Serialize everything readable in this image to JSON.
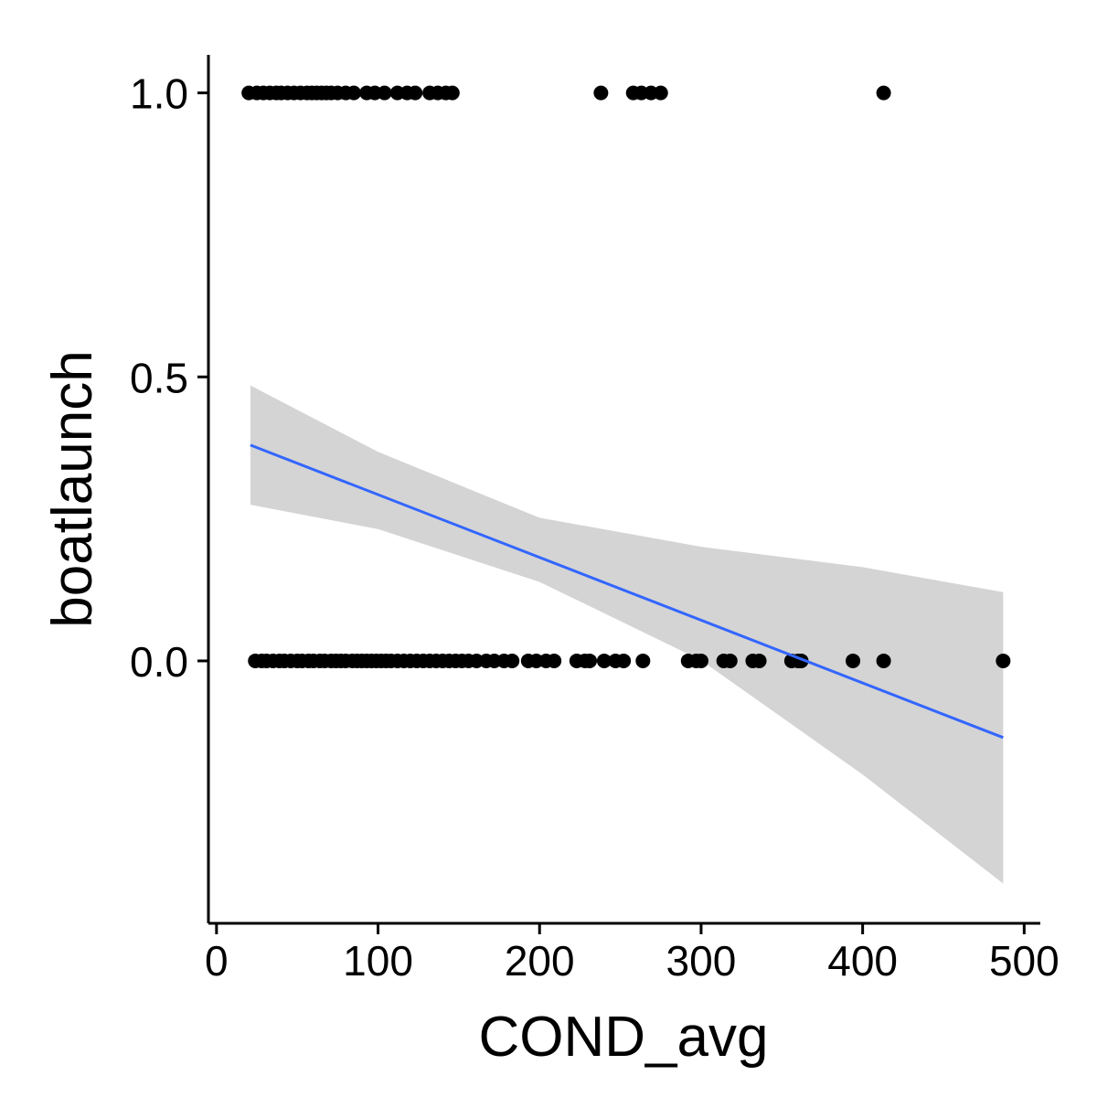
{
  "chart_data": {
    "type": "scatter",
    "xlabel": "COND_avg",
    "ylabel": "boatlaunch",
    "xlim": [
      -5,
      510
    ],
    "ylim": [
      -0.462,
      1.067
    ],
    "x_ticks": [
      {
        "value": 0,
        "label": "0"
      },
      {
        "value": 100,
        "label": "100"
      },
      {
        "value": 200,
        "label": "200"
      },
      {
        "value": 300,
        "label": "300"
      },
      {
        "value": 400,
        "label": "400"
      },
      {
        "value": 500,
        "label": "500"
      }
    ],
    "y_ticks": [
      {
        "value": 0.0,
        "label": "0.0"
      },
      {
        "value": 0.5,
        "label": "0.5"
      },
      {
        "value": 1.0,
        "label": "1.0"
      }
    ],
    "grid": false,
    "legend": "none",
    "points_y1": [
      20,
      25,
      29,
      33,
      37,
      40,
      44,
      48,
      52,
      56,
      59,
      62,
      65,
      68,
      71,
      75,
      80,
      85,
      93,
      98,
      104,
      112,
      118,
      123,
      132,
      137,
      142,
      146,
      238,
      258,
      263,
      269,
      275,
      413
    ],
    "points_y0": [
      24,
      28,
      31,
      35,
      39,
      42,
      46,
      50,
      53,
      57,
      60,
      64,
      67,
      71,
      74,
      77,
      80,
      84,
      87,
      90,
      93,
      96,
      99,
      102,
      105,
      108,
      112,
      116,
      120,
      124,
      128,
      132,
      136,
      140,
      144,
      148,
      152,
      156,
      161,
      167,
      172,
      178,
      183,
      193,
      198,
      204,
      209,
      223,
      228,
      231,
      240,
      247,
      252,
      264,
      292,
      297,
      300,
      314,
      318,
      332,
      336,
      356,
      360,
      362,
      394,
      413,
      487
    ],
    "fit_line": {
      "x": [
        21,
        487
      ],
      "y": [
        0.38,
        -0.135
      ],
      "color": "#3366FF"
    },
    "confidence_band": {
      "x": [
        21,
        100,
        200,
        300,
        400,
        487
      ],
      "lower": [
        0.275,
        0.232,
        0.139,
        0.001,
        -0.2,
        -0.392
      ],
      "upper": [
        0.485,
        0.368,
        0.252,
        0.201,
        0.165,
        0.121
      ],
      "color": "#D4D4D4"
    },
    "point_color": "#000000"
  }
}
